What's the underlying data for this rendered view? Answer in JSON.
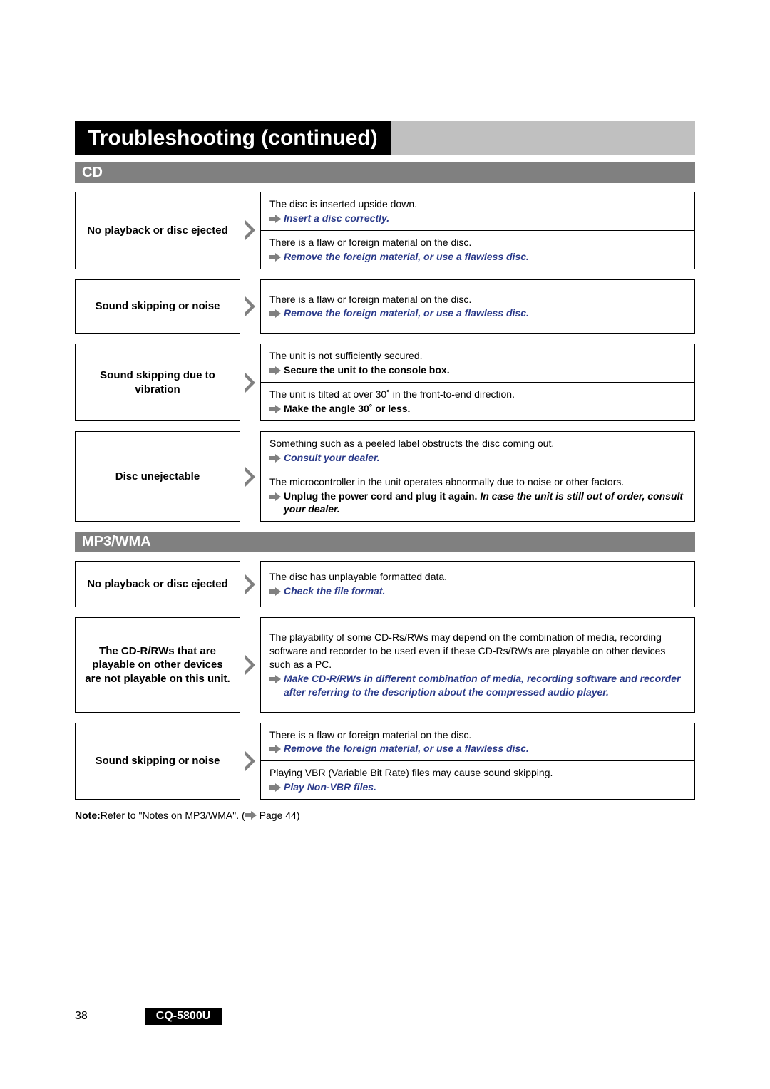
{
  "colors": {
    "black": "#000000",
    "gray": "#808080",
    "lightgray": "#c0c0c0",
    "blue": "#2a3a8a",
    "arrowFill": "#808080"
  },
  "title": "Troubleshooting (continued)",
  "sections": [
    {
      "header": "CD",
      "rows": [
        {
          "problem": "No playback or disc ejected",
          "causes": [
            {
              "cause": "The disc is inserted upside down.",
              "sol": [
                {
                  "t": "Insert a disc correctly.",
                  "s": "ib"
                }
              ]
            },
            {
              "cause": "There is a flaw or foreign material on the disc.",
              "sol": [
                {
                  "t": "Remove the foreign material, or use a flawless disc.",
                  "s": "ib"
                }
              ]
            }
          ]
        },
        {
          "problem": "Sound skipping or noise",
          "causes": [
            {
              "cause": "There is a flaw or foreign material on the disc.",
              "sol": [
                {
                  "t": "Remove the foreign material, or use a flawless disc.",
                  "s": "ib"
                }
              ],
              "pad": true
            }
          ]
        },
        {
          "problem": "Sound skipping due to vibration",
          "causes": [
            {
              "cause": "The unit is not sufficiently secured.",
              "sol": [
                {
                  "t": "Secure the unit to the console box.",
                  "s": "b"
                }
              ]
            },
            {
              "cause": "The unit is tilted at over 30˚ in the front-to-end direction.",
              "sol": [
                {
                  "t": "Make the angle 30˚ or less.",
                  "s": "b"
                }
              ]
            }
          ]
        },
        {
          "problem": "Disc unejectable",
          "causes": [
            {
              "cause": "Something such as a peeled label obstructs the disc coming out.",
              "sol": [
                {
                  "t": "Consult your dealer.",
                  "s": "ib"
                }
              ]
            },
            {
              "cause": "The microcontroller in the unit operates abnormally due to noise or other factors.",
              "sol": [
                {
                  "t": "Unplug the power cord and plug it again. ",
                  "s": "b"
                },
                {
                  "t": "In case the unit is still out of order, consult your dealer.",
                  "s": "ibk"
                }
              ]
            }
          ]
        }
      ]
    },
    {
      "header": "MP3/WMA",
      "rows": [
        {
          "problem": "No playback or disc ejected",
          "causes": [
            {
              "cause": "The disc has unplayable formatted data.",
              "sol": [
                {
                  "t": "Check the file format.",
                  "s": "ib"
                }
              ],
              "pad": "sm"
            }
          ]
        },
        {
          "problem": "The CD-R/RWs that are playable on other devices are not playable on this unit.",
          "causes": [
            {
              "cause": "The playability of some CD-Rs/RWs may depend on the combination of media, recording software and recorder to be used even if these CD-Rs/RWs are playable on other devices such as a PC.",
              "sol": [
                {
                  "t": "Make CD-R/RWs in different combination of media, recording software and recorder after referring to the description about the compressed audio player.",
                  "s": "ib"
                }
              ],
              "pad": true
            }
          ]
        },
        {
          "problem": "Sound skipping or noise",
          "causes": [
            {
              "cause": "There is a flaw or foreign material on the disc.",
              "sol": [
                {
                  "t": "Remove the foreign material, or use a flawless disc.",
                  "s": "ib"
                }
              ]
            },
            {
              "cause": "Playing VBR (Variable Bit Rate) files may cause sound skipping.",
              "sol": [
                {
                  "t": "Play Non-VBR files.",
                  "s": "ib"
                }
              ]
            }
          ]
        }
      ],
      "note": {
        "label": "Note:",
        "text": " Refer to \"Notes on MP3/WMA\". (",
        "after": " Page 44)"
      }
    }
  ],
  "footer": {
    "page": "38",
    "model": "CQ-5800U"
  }
}
